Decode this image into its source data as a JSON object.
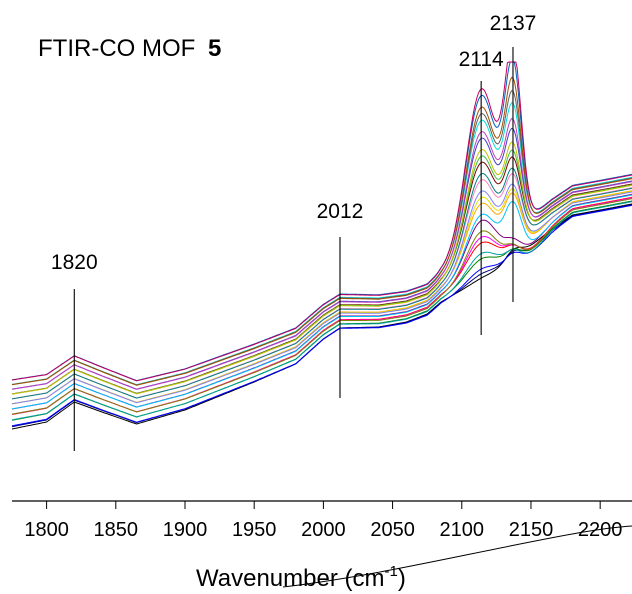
{
  "chart_data": {
    "type": "line",
    "title": "FTIR-CO MOF",
    "title_bold": "5",
    "xlabel": "Wavenumber (cm",
    "xlabel_sup": "-1",
    "xlabel_close": ")",
    "xlim": [
      1775,
      2223
    ],
    "x_ticks": [
      1800,
      1850,
      1900,
      1950,
      2000,
      2050,
      2100,
      2150,
      2200
    ],
    "tick_labels": [
      "1800",
      "1850",
      "1900",
      "1950",
      "2000",
      "2050",
      "2100",
      "2150",
      "2200"
    ],
    "ylabel": "",
    "y_axis_visible": false,
    "grid": false,
    "legend": "none",
    "peak_markers": [
      {
        "label": "1820",
        "x": 1820
      },
      {
        "label": "2012",
        "x": 2012
      },
      {
        "label": "2114",
        "x": 2114
      },
      {
        "label": "2137",
        "x": 2137
      }
    ],
    "series_count": 25,
    "series_colors": [
      "#000000",
      "#000080",
      "#0000ff",
      "#008000",
      "#00a0a0",
      "#ff0000",
      "#ff00ff",
      "#808000",
      "#800080",
      "#00c0ff",
      "#ffa500",
      "#e0e000",
      "#8080ff",
      "#ff80c0",
      "#008080",
      "#800000",
      "#40c040",
      "#c0c000",
      "#4040c0",
      "#c040c0",
      "#00e0e0",
      "#606060",
      "#a05000",
      "#0060c0",
      "#c00060"
    ]
  }
}
